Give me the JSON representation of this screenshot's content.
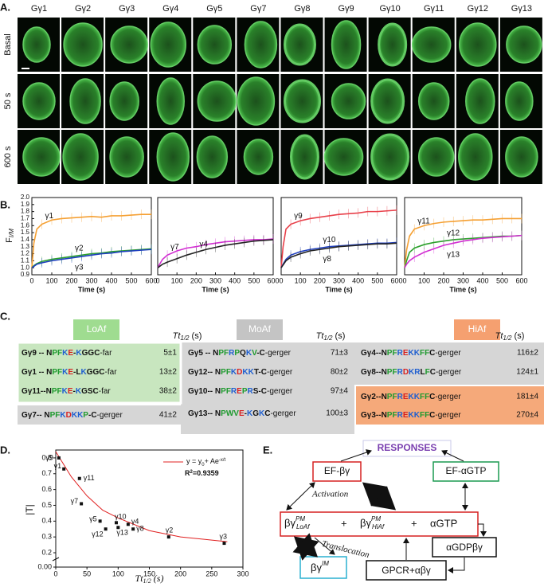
{
  "panel_labels": [
    "A.",
    "B.",
    "C.",
    "D.",
    "E."
  ],
  "panel_a": {
    "columns": [
      "Gγ1",
      "Gγ2",
      "Gγ3",
      "Gγ4",
      "Gγ5",
      "Gγ7",
      "Gγ8",
      "Gγ9",
      "Gγ10",
      "Gγ11",
      "Gγ12",
      "Gγ13"
    ],
    "rows": [
      "Basal",
      "50 s",
      "600 s"
    ]
  },
  "chart_data": [
    {
      "type": "line",
      "x": [
        0,
        10,
        25,
        50,
        100,
        150,
        200,
        250,
        300,
        350,
        400,
        450,
        500,
        550,
        600
      ],
      "xlim": [
        0,
        600
      ],
      "xticks": [
        0,
        100,
        200,
        300,
        400,
        500,
        600
      ],
      "xlabel": "Time (s)",
      "ylabel": {
        "main": "F",
        "sub": "I/M"
      },
      "ylim": [
        0.9,
        2.0
      ],
      "yticks": [
        0.9,
        {
          "value": 1,
          "label": "1.0"
        },
        1.1,
        1.2,
        1.3,
        1.4,
        1.5,
        1.6,
        1.7,
        1.8,
        1.9,
        {
          "value": 2,
          "label": "2.0"
        }
      ],
      "series": [
        {
          "name": "γ1",
          "color": "#f5a033",
          "values": [
            1.0,
            1.35,
            1.55,
            1.62,
            1.68,
            1.7,
            1.71,
            1.72,
            1.73,
            1.72,
            1.74,
            1.74,
            1.75,
            1.76,
            1.76
          ]
        },
        {
          "name": "γ2",
          "color": "#2ca02c",
          "values": [
            1.0,
            1.03,
            1.06,
            1.09,
            1.12,
            1.14,
            1.16,
            1.18,
            1.2,
            1.21,
            1.23,
            1.24,
            1.25,
            1.26,
            1.27
          ]
        },
        {
          "name": "γ3",
          "color": "#1f3fbf",
          "values": [
            1.0,
            1.02,
            1.05,
            1.07,
            1.1,
            1.12,
            1.14,
            1.16,
            1.18,
            1.2,
            1.21,
            1.23,
            1.24,
            1.25,
            1.26
          ]
        }
      ]
    },
    {
      "type": "line",
      "x": [
        0,
        10,
        25,
        50,
        100,
        150,
        200,
        250,
        300,
        350,
        400,
        450,
        500,
        550,
        600
      ],
      "xlim": [
        0,
        600
      ],
      "xticks": [
        0,
        100,
        200,
        300,
        400,
        500,
        600
      ],
      "xlabel": "Time (s)",
      "ylim": [
        0.9,
        2.0
      ],
      "series": [
        {
          "name": "γ7",
          "color": "#d22fd2",
          "values": [
            1.0,
            1.05,
            1.12,
            1.18,
            1.24,
            1.28,
            1.3,
            1.33,
            1.35,
            1.37,
            1.38,
            1.39,
            1.4,
            1.4,
            1.41
          ]
        },
        {
          "name": "γ4",
          "color": "#222222",
          "values": [
            1.0,
            1.02,
            1.05,
            1.08,
            1.13,
            1.18,
            1.22,
            1.26,
            1.29,
            1.32,
            1.34,
            1.36,
            1.38,
            1.39,
            1.4
          ]
        }
      ]
    },
    {
      "type": "line",
      "x": [
        0,
        10,
        25,
        50,
        100,
        150,
        200,
        250,
        300,
        350,
        400,
        450,
        500,
        550,
        600
      ],
      "xlim": [
        0,
        600
      ],
      "xticks": [
        0,
        100,
        200,
        300,
        400,
        500,
        600
      ],
      "xlabel": "Time (s)",
      "ylim": [
        0.9,
        2.0
      ],
      "series": [
        {
          "name": "γ9",
          "color": "#e8404a",
          "values": [
            1.0,
            1.3,
            1.55,
            1.62,
            1.67,
            1.7,
            1.72,
            1.74,
            1.76,
            1.77,
            1.78,
            1.8,
            1.8,
            1.81,
            1.82
          ]
        },
        {
          "name": "γ10",
          "color": "#1f3fbf",
          "values": [
            1.0,
            1.05,
            1.12,
            1.18,
            1.23,
            1.26,
            1.28,
            1.3,
            1.31,
            1.32,
            1.33,
            1.34,
            1.35,
            1.35,
            1.36
          ]
        },
        {
          "name": "γ8",
          "color": "#222222",
          "values": [
            1.0,
            1.04,
            1.1,
            1.15,
            1.2,
            1.24,
            1.26,
            1.28,
            1.3,
            1.31,
            1.32,
            1.33,
            1.34,
            1.34,
            1.35
          ]
        }
      ]
    },
    {
      "type": "line",
      "x": [
        0,
        10,
        25,
        50,
        100,
        150,
        200,
        250,
        300,
        350,
        400,
        450,
        500,
        550,
        600
      ],
      "xlim": [
        0,
        600
      ],
      "xticks": [
        0,
        100,
        200,
        300,
        400,
        500,
        600
      ],
      "xlabel": "Time (s)",
      "ylim": [
        0.9,
        2.0
      ],
      "series": [
        {
          "name": "γ11",
          "color": "#f5a033",
          "values": [
            1.0,
            1.25,
            1.45,
            1.55,
            1.6,
            1.63,
            1.65,
            1.66,
            1.67,
            1.68,
            1.68,
            1.69,
            1.7,
            1.7,
            1.7
          ]
        },
        {
          "name": "γ12",
          "color": "#2ca02c",
          "values": [
            1.0,
            1.1,
            1.22,
            1.28,
            1.33,
            1.36,
            1.38,
            1.4,
            1.41,
            1.42,
            1.43,
            1.44,
            1.45,
            1.45,
            1.46
          ]
        },
        {
          "name": "γ13",
          "color": "#d22fd2",
          "values": [
            1.0,
            1.05,
            1.1,
            1.15,
            1.22,
            1.27,
            1.32,
            1.35,
            1.38,
            1.4,
            1.42,
            1.43,
            1.44,
            1.45,
            1.46
          ]
        }
      ]
    },
    {
      "type": "scatter",
      "x": [
        5,
        13,
        38,
        41,
        71,
        80,
        97,
        100,
        116,
        124,
        181,
        270
      ],
      "values": [
        0.8,
        0.73,
        0.67,
        0.51,
        0.4,
        0.35,
        0.39,
        0.36,
        0.38,
        0.35,
        0.3,
        0.26
      ],
      "point_labels": [
        "γ9",
        "γ1",
        "γ11",
        "γ7",
        "γ5",
        "γ12",
        "γ10",
        "γ13",
        "γ4",
        "γ8",
        "γ2",
        "γ3"
      ],
      "color": "#111111",
      "fit": {
        "color": "#e02020",
        "x": [
          0,
          25,
          50,
          75,
          100,
          150,
          200,
          250,
          275
        ],
        "values": [
          0.84,
          0.68,
          0.56,
          0.47,
          0.42,
          0.34,
          0.3,
          0.28,
          0.27
        ]
      },
      "fit_label": [
        "y = y",
        "0",
        "+ Ae",
        "-x/t"
      ],
      "r2_label": [
        "R",
        "2",
        "=0.9359"
      ],
      "xlabel": [
        "Tt",
        "1/2",
        " (s)"
      ],
      "ylabel": "|T|",
      "xlim": [
        0,
        300
      ],
      "xticks": [
        0,
        50,
        100,
        150,
        200,
        250,
        300
      ],
      "ylim": [
        0,
        0.85
      ],
      "yticks": [
        {
          "value": 0,
          "label": "0.00"
        },
        0.2,
        0.3,
        0.4,
        0.5,
        0.6,
        0.7,
        0.8
      ]
    }
  ],
  "panel_c": {
    "groups": [
      "LoAf",
      "MoAf",
      "HiAf"
    ],
    "t_header": [
      "Tt",
      "1/2",
      " (s)"
    ],
    "rows": [
      {
        "name": "Gγ9 -- ",
        "seq": "NPFKE-KGGC",
        "tail": "-far",
        "t": "5±1"
      },
      {
        "name": "Gγ1 -- ",
        "seq": "NPFKE-LKGGC",
        "tail": "-far",
        "t": "13±2"
      },
      {
        "name": "Gγ11--",
        "seq": "NPFKE-KGSC",
        "tail": "-far",
        "t": "38±2"
      },
      {
        "name": "Gγ7-- ",
        "seq": "NPFKDKKP-C",
        "tail": "-gerger",
        "t": "41±2"
      },
      {
        "name": "Gγ5  -- ",
        "seq": "NPFRPQKV-C",
        "tail": "-gerger",
        "t": "71±3"
      },
      {
        "name": "Gγ12-- ",
        "seq": "NPFKDKKT-C",
        "tail": "-gerger",
        "t": "80±2"
      },
      {
        "name": "Gγ10-- ",
        "seq": "NPFREPRS-C",
        "tail": "-gerger",
        "t": "97±4"
      },
      {
        "name": "Gγ13-- ",
        "seq": "NPWVE-KGKC",
        "tail": "-gerger",
        "t": "100±3"
      },
      {
        "name": "Gγ4--",
        "seq": "NPFREKKFFC",
        "tail": "-gerger",
        "t": "116±2"
      },
      {
        "name": "Gγ8--",
        "seq": "NPFRDKRLFC",
        "tail": "-gerger",
        "t": "124±1"
      },
      {
        "name": "Gγ2--",
        "seq": "NPFREKKFFC",
        "tail": "-gerger",
        "t": "181±4"
      },
      {
        "name": "Gγ3--",
        "seq": "NPFREKKFFC",
        "tail": "-gerger",
        "t": "270±4"
      }
    ]
  },
  "panel_e": {
    "responses": "RESPONSES",
    "ef_bg": "EF-βγ",
    "ef_agtp": "EF-αGTP",
    "lo": {
      "base": "βγ",
      "sup": "PM",
      "sub": "LoAf"
    },
    "plus": "+",
    "hi": {
      "base": "βγ",
      "sup": "PM",
      "sub": "HiAf"
    },
    "agtp": "αGTP",
    "agdp": "αGDPβγ",
    "gpcr": "GPCR+αβγ",
    "im": {
      "base": "βγ",
      "sup": "IM"
    },
    "activation": "Activation",
    "translocation": "Translocation"
  }
}
